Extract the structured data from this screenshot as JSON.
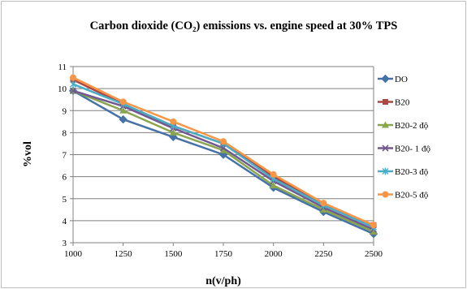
{
  "chart_data": {
    "type": "line",
    "title": "Carbon dioxide (CO₂) emissions vs. engine speed at 30% TPS",
    "xlabel": "n(v/ph)",
    "ylabel": "%vol",
    "x": [
      1000,
      1250,
      1500,
      1750,
      2000,
      2250,
      2500
    ],
    "ylim": [
      3,
      11
    ],
    "yticks": [
      3,
      4,
      5,
      6,
      7,
      8,
      9,
      10,
      11
    ],
    "grid": true,
    "legend_position": "right",
    "series": [
      {
        "name": "DO",
        "color": "#4572a7",
        "marker": "diamond",
        "values": [
          9.9,
          8.6,
          7.8,
          7.0,
          5.5,
          4.4,
          3.4
        ]
      },
      {
        "name": "B20",
        "color": "#aa4643",
        "marker": "square",
        "values": [
          10.4,
          9.3,
          8.3,
          7.5,
          6.0,
          4.7,
          3.8
        ]
      },
      {
        "name": "B20-2 độ",
        "color": "#89a54e",
        "marker": "triangle",
        "values": [
          9.9,
          9.0,
          8.0,
          7.2,
          5.6,
          4.5,
          3.5
        ]
      },
      {
        "name": "B20- 1 độ",
        "color": "#71588f",
        "marker": "x",
        "values": [
          9.9,
          9.2,
          8.2,
          7.3,
          5.8,
          4.6,
          3.6
        ]
      },
      {
        "name": "B20-3 độ",
        "color": "#4bacc6",
        "marker": "star",
        "values": [
          10.2,
          9.3,
          8.3,
          7.5,
          5.9,
          4.7,
          3.7
        ]
      },
      {
        "name": "B20-5 độ",
        "color": "#f79646",
        "marker": "circle",
        "values": [
          10.5,
          9.4,
          8.5,
          7.6,
          6.1,
          4.8,
          3.8
        ]
      }
    ]
  }
}
